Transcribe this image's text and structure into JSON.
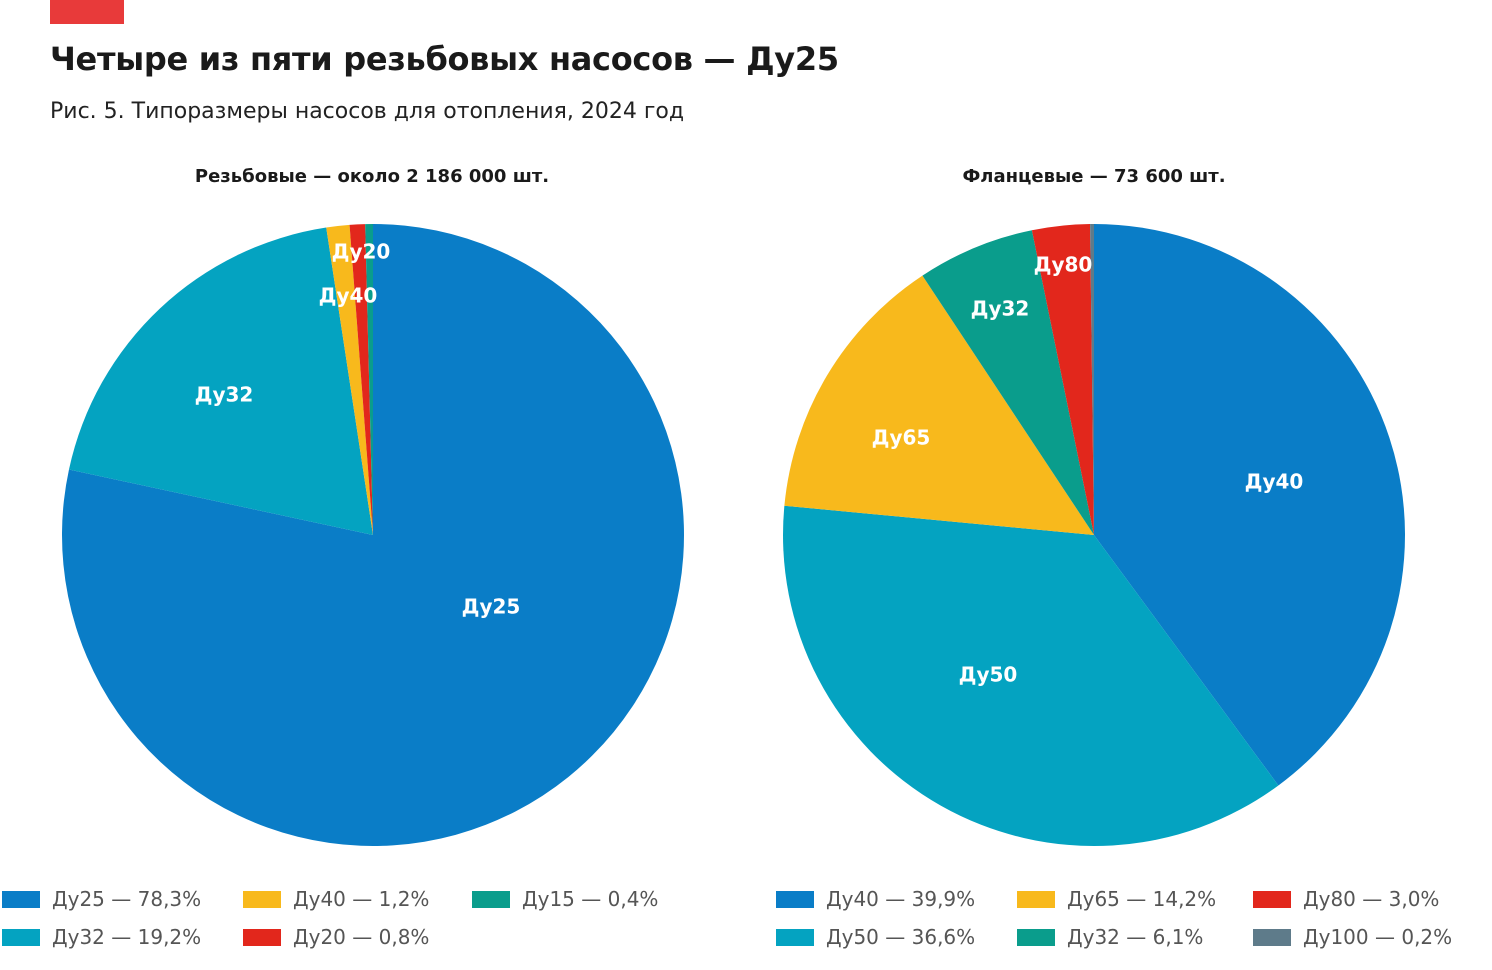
{
  "header": {
    "title": "Четыре из пяти резьбовых насосов — Ду25",
    "subtitle": "Рис. 5. Типоразмеры насосов для отопления, 2024 год",
    "accent_color": "#e83a3a"
  },
  "chart_data": [
    {
      "type": "pie",
      "title": "Резьбовые — около 2 186 000 шт.",
      "start": "12 o'clock, clockwise",
      "slices": [
        {
          "label": "Ду25",
          "value": 78.3,
          "color": "#0a7dc7",
          "legend": "Ду25 — 78,3%"
        },
        {
          "label": "Ду32",
          "value": 19.2,
          "color": "#04a3c1",
          "legend": "Ду32 — 19,2%"
        },
        {
          "label": "Ду40",
          "value": 1.2,
          "color": "#f8b91c",
          "legend": "Ду40 — 1,2%"
        },
        {
          "label": "Ду20",
          "value": 0.8,
          "color": "#e2271c",
          "legend": "Ду20 — 0,8%"
        },
        {
          "label": "Ду15",
          "value": 0.4,
          "color": "#0a9d8c",
          "legend": "Ду15 — 0,4%"
        }
      ],
      "legend_order": [
        "Ду25",
        "Ду32",
        "Ду40",
        "Ду20",
        "Ду15"
      ]
    },
    {
      "type": "pie",
      "title": "Фланцевые — 73 600 шт.",
      "start": "12 o'clock, clockwise",
      "slices": [
        {
          "label": "Ду40",
          "value": 39.9,
          "color": "#0a7dc7",
          "legend": "Ду40 — 39,9%"
        },
        {
          "label": "Ду50",
          "value": 36.6,
          "color": "#04a3c1",
          "legend": "Ду50 — 36,6%"
        },
        {
          "label": "Ду65",
          "value": 14.2,
          "color": "#f8b91c",
          "legend": "Ду65 — 14,2%"
        },
        {
          "label": "Ду32",
          "value": 6.1,
          "color": "#0a9d8c",
          "legend": "Ду32 — 6,1%"
        },
        {
          "label": "Ду80",
          "value": 3.0,
          "color": "#e2271c",
          "legend": "Ду80 — 3,0%"
        },
        {
          "label": "Ду100",
          "value": 0.2,
          "color": "#5e7b8a",
          "legend": "Ду100 — 0,2%"
        }
      ],
      "legend_order": [
        "Ду40",
        "Ду50",
        "Ду65",
        "Ду32",
        "Ду80",
        "Ду100"
      ]
    }
  ]
}
